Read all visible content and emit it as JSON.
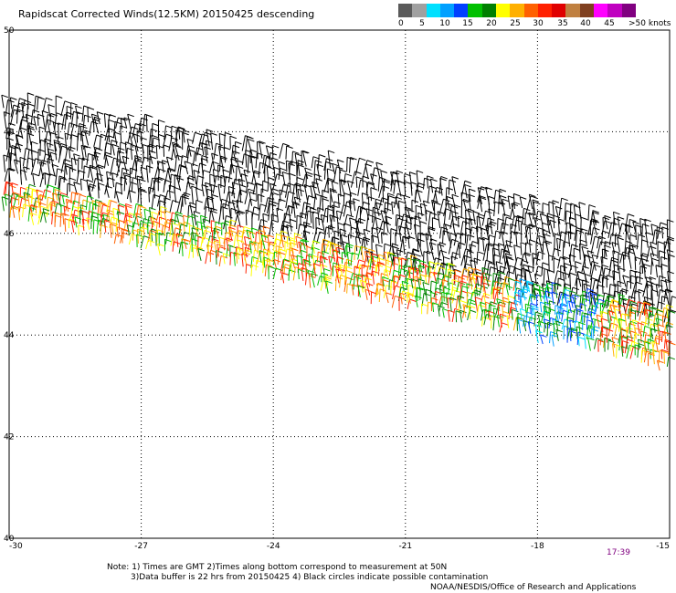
{
  "title": "Rapidscat Corrected Winds(12.5KM) 20150425 descending",
  "legend": {
    "colors": [
      "#5a5a5a",
      "#a0a0a0",
      "#00e0ff",
      "#00a0ff",
      "#0040ff",
      "#00c000",
      "#008000",
      "#ffff00",
      "#ffb000",
      "#ff6000",
      "#ff2000",
      "#e00000",
      "#c08040",
      "#804020",
      "#ff00ff",
      "#c000c0",
      "#800080"
    ],
    "labels": [
      "0",
      "5",
      "10",
      "15",
      "20",
      "25",
      "30",
      "35",
      "40",
      "45",
      ">50 knots"
    ]
  },
  "map": {
    "lon_range": [
      -30,
      -15
    ],
    "lat_range": [
      40,
      50
    ],
    "x_ticks": [
      "-30",
      "-27",
      "-24",
      "-21",
      "-18",
      "-15"
    ],
    "y_ticks": [
      "50",
      "48",
      "46",
      "44",
      "42",
      "40"
    ]
  },
  "timestamp": "17:39",
  "notes": {
    "line1": "Note: 1) Times are GMT 2)Times along bottom correspond to measurement at 50N",
    "line2": "3)Data buffer is 22 hrs from 20150425 4) Black circles indicate possible contamination"
  },
  "credit": "NOAA/NESDIS/Office of Research and Applications"
}
